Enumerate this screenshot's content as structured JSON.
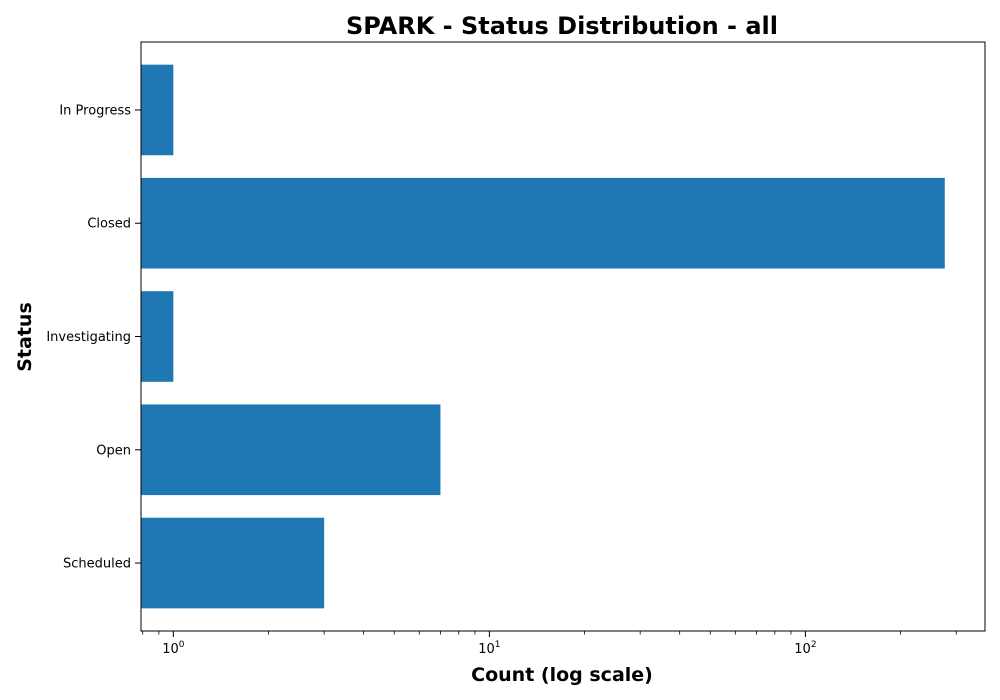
{
  "chart_data": {
    "type": "bar",
    "orientation": "horizontal",
    "title": "SPARK - Status Distribution - all",
    "xlabel": "Count (log scale)",
    "ylabel": "Status",
    "x_scale": "log",
    "xlim": [
      0.79,
      370
    ],
    "x_major_ticks": [
      {
        "value": 1,
        "base": "10",
        "exp": "0"
      },
      {
        "value": 10,
        "base": "10",
        "exp": "1"
      },
      {
        "value": 100,
        "base": "10",
        "exp": "2"
      }
    ],
    "categories": [
      "In Progress",
      "Closed",
      "Investigating",
      "Open",
      "Scheduled"
    ],
    "values": [
      1,
      276,
      1,
      7,
      3
    ],
    "bar_color": "#1f77b4",
    "grid": false
  }
}
